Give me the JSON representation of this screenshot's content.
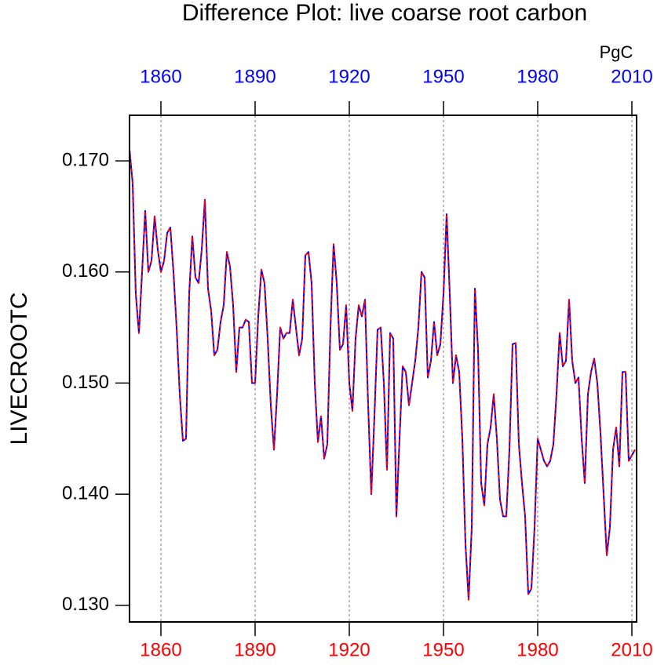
{
  "chart_data": {
    "type": "line",
    "title": "Difference Plot: live coarse root carbon",
    "units": "PgC",
    "ylabel": "LIVECROOTC",
    "x": [
      1850,
      1851,
      1852,
      1853,
      1854,
      1855,
      1856,
      1857,
      1858,
      1859,
      1860,
      1861,
      1862,
      1863,
      1864,
      1865,
      1866,
      1867,
      1868,
      1869,
      1870,
      1871,
      1872,
      1873,
      1874,
      1875,
      1876,
      1877,
      1878,
      1879,
      1880,
      1881,
      1882,
      1883,
      1884,
      1885,
      1886,
      1887,
      1888,
      1889,
      1890,
      1891,
      1892,
      1893,
      1894,
      1895,
      1896,
      1897,
      1898,
      1899,
      1900,
      1901,
      1902,
      1903,
      1904,
      1905,
      1906,
      1907,
      1908,
      1909,
      1910,
      1911,
      1912,
      1913,
      1914,
      1915,
      1916,
      1917,
      1918,
      1919,
      1920,
      1921,
      1922,
      1923,
      1924,
      1925,
      1926,
      1927,
      1928,
      1929,
      1930,
      1931,
      1932,
      1933,
      1934,
      1935,
      1936,
      1937,
      1938,
      1939,
      1940,
      1941,
      1942,
      1943,
      1944,
      1945,
      1946,
      1947,
      1948,
      1949,
      1950,
      1951,
      1952,
      1953,
      1954,
      1955,
      1956,
      1957,
      1958,
      1959,
      1960,
      1961,
      1962,
      1963,
      1964,
      1965,
      1966,
      1967,
      1968,
      1969,
      1970,
      1971,
      1972,
      1973,
      1974,
      1975,
      1976,
      1977,
      1978,
      1979,
      1980,
      1981,
      1982,
      1983,
      1984,
      1985,
      1986,
      1987,
      1988,
      1989,
      1990,
      1991,
      1992,
      1993,
      1994,
      1995,
      1996,
      1997,
      1998,
      1999,
      2000,
      2001,
      2002,
      2003,
      2004,
      2005,
      2006,
      2007,
      2008,
      2009,
      2010,
      2011
    ],
    "series": [
      {
        "color": "#0000ff",
        "dash": false,
        "values": [
          0.171,
          0.168,
          0.158,
          0.1545,
          0.16,
          0.1655,
          0.16,
          0.161,
          0.165,
          0.162,
          0.16,
          0.161,
          0.1635,
          0.164,
          0.16,
          0.155,
          0.149,
          0.1448,
          0.145,
          0.158,
          0.1632,
          0.1595,
          0.159,
          0.162,
          0.1665,
          0.1585,
          0.1565,
          0.1525,
          0.153,
          0.1555,
          0.157,
          0.1618,
          0.1605,
          0.157,
          0.151,
          0.155,
          0.155,
          0.1557,
          0.1555,
          0.15,
          0.15,
          0.156,
          0.1602,
          0.159,
          0.154,
          0.148,
          0.144,
          0.149,
          0.155,
          0.154,
          0.1545,
          0.1545,
          0.1575,
          0.155,
          0.1525,
          0.154,
          0.1615,
          0.1618,
          0.159,
          0.15,
          0.1447,
          0.147,
          0.1432,
          0.1445,
          0.155,
          0.1625,
          0.159,
          0.153,
          0.1535,
          0.157,
          0.15,
          0.1475,
          0.154,
          0.157,
          0.156,
          0.1575,
          0.148,
          0.14,
          0.147,
          0.1548,
          0.155,
          0.15,
          0.1422,
          0.1545,
          0.154,
          0.138,
          0.145,
          0.1515,
          0.151,
          0.148,
          0.15,
          0.152,
          0.155,
          0.16,
          0.1595,
          0.1505,
          0.152,
          0.1555,
          0.1525,
          0.1535,
          0.158,
          0.1652,
          0.158,
          0.15,
          0.1525,
          0.151,
          0.145,
          0.1355,
          0.1305,
          0.137,
          0.1585,
          0.153,
          0.141,
          0.139,
          0.1445,
          0.146,
          0.149,
          0.145,
          0.1395,
          0.138,
          0.138,
          0.144,
          0.1535,
          0.1536,
          0.1445,
          0.141,
          0.138,
          0.131,
          0.1315,
          0.137,
          0.145,
          0.144,
          0.143,
          0.1425,
          0.143,
          0.1445,
          0.149,
          0.1545,
          0.1515,
          0.152,
          0.1575,
          0.152,
          0.15,
          0.1505,
          0.145,
          0.141,
          0.149,
          0.151,
          0.1522,
          0.15,
          0.1455,
          0.14,
          0.1345,
          0.137,
          0.144,
          0.146,
          0.1425,
          0.151,
          0.151,
          0.143,
          0.1435,
          0.144
        ]
      },
      {
        "color": "#ff0000",
        "dash": true,
        "values": [
          0.171,
          0.168,
          0.158,
          0.1545,
          0.16,
          0.1655,
          0.16,
          0.161,
          0.165,
          0.162,
          0.16,
          0.161,
          0.1635,
          0.164,
          0.16,
          0.155,
          0.149,
          0.1448,
          0.145,
          0.158,
          0.1632,
          0.1595,
          0.159,
          0.162,
          0.1665,
          0.1585,
          0.1565,
          0.1525,
          0.153,
          0.1555,
          0.157,
          0.1618,
          0.1605,
          0.157,
          0.151,
          0.155,
          0.155,
          0.1557,
          0.1555,
          0.15,
          0.15,
          0.156,
          0.1602,
          0.159,
          0.154,
          0.148,
          0.144,
          0.149,
          0.155,
          0.154,
          0.1545,
          0.1545,
          0.1575,
          0.155,
          0.1525,
          0.154,
          0.1615,
          0.1618,
          0.159,
          0.15,
          0.1447,
          0.147,
          0.1432,
          0.1445,
          0.155,
          0.1625,
          0.159,
          0.153,
          0.1535,
          0.157,
          0.15,
          0.1475,
          0.154,
          0.157,
          0.156,
          0.1575,
          0.148,
          0.14,
          0.147,
          0.1548,
          0.155,
          0.15,
          0.1422,
          0.1545,
          0.154,
          0.138,
          0.145,
          0.1515,
          0.151,
          0.148,
          0.15,
          0.152,
          0.155,
          0.16,
          0.1595,
          0.1505,
          0.152,
          0.1555,
          0.1525,
          0.1535,
          0.158,
          0.1652,
          0.158,
          0.15,
          0.1525,
          0.151,
          0.145,
          0.1355,
          0.1305,
          0.137,
          0.1585,
          0.153,
          0.141,
          0.139,
          0.1445,
          0.146,
          0.149,
          0.145,
          0.1395,
          0.138,
          0.138,
          0.144,
          0.1535,
          0.1536,
          0.1445,
          0.141,
          0.138,
          0.131,
          0.1315,
          0.137,
          0.145,
          0.144,
          0.143,
          0.1425,
          0.143,
          0.1445,
          0.149,
          0.1545,
          0.1515,
          0.152,
          0.1575,
          0.152,
          0.15,
          0.1505,
          0.145,
          0.141,
          0.149,
          0.151,
          0.1522,
          0.15,
          0.1455,
          0.14,
          0.1345,
          0.137,
          0.144,
          0.146,
          0.1425,
          0.151,
          0.151,
          0.143,
          0.1435,
          0.144
        ]
      }
    ],
    "xlim": [
      1850,
      2011.5
    ],
    "xticks": [
      1860,
      1890,
      1920,
      1950,
      1980,
      2010
    ],
    "bottom_tick_color": "#ff0000",
    "top_tick_color": "#0000ff",
    "ylim": [
      0.1285,
      0.1741
    ],
    "yticks": [
      {
        "value": 0.13,
        "label": "0.130"
      },
      {
        "value": 0.14,
        "label": "0.140"
      },
      {
        "value": 0.15,
        "label": "0.150"
      },
      {
        "value": 0.16,
        "label": "0.160"
      },
      {
        "value": 0.17,
        "label": "0.170"
      }
    ],
    "xgrid": true
  }
}
